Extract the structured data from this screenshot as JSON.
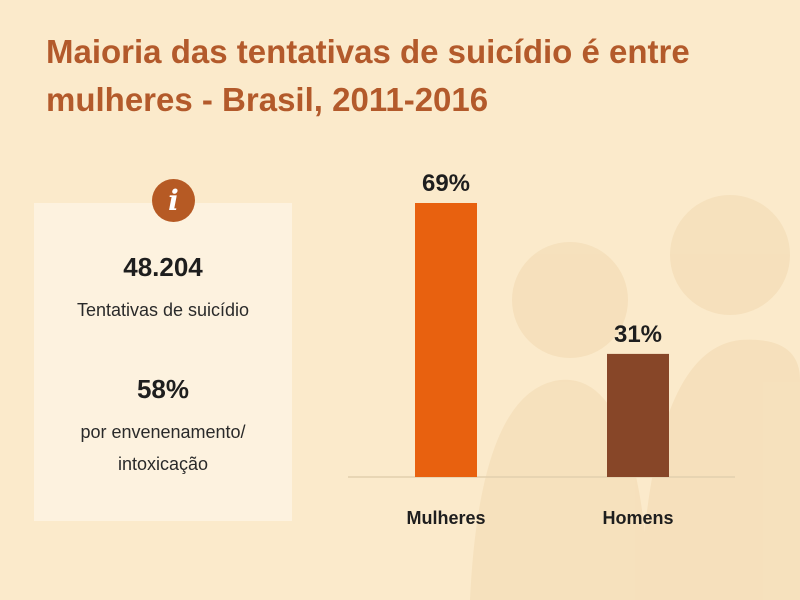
{
  "title": "Maioria das tentativas de suicídio é entre mulheres - Brasil, 2011-2016",
  "info": {
    "icon": "info-icon",
    "icon_glyph": "i",
    "stat1_value": "48.204",
    "stat1_label": "Tentativas de suicídio",
    "stat2_value": "58%",
    "stat2_label_line1": "por envenenamento/",
    "stat2_label_line2": "intoxicação"
  },
  "colors": {
    "background": "#fbeacb",
    "title": "#b35a2b",
    "mulheres": "#e8610f",
    "homens": "#874628"
  },
  "chart_data": {
    "type": "bar",
    "title": "Maioria das tentativas de suicídio é entre mulheres - Brasil, 2011-2016",
    "categories": [
      "Mulheres",
      "Homens"
    ],
    "values": [
      69,
      31
    ],
    "value_labels": [
      "69%",
      "31%"
    ],
    "unit": "%",
    "ylim": [
      0,
      69
    ],
    "grid": false,
    "xlabel": "",
    "ylabel": ""
  }
}
